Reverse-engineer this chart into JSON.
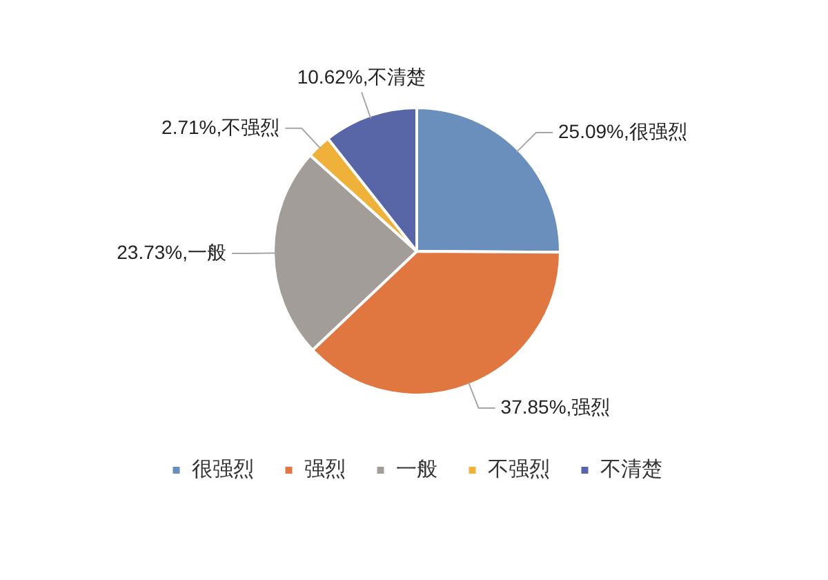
{
  "chart_data": {
    "type": "pie",
    "categories": [
      "很强烈",
      "强烈",
      "一般",
      "不强烈",
      "不清楚"
    ],
    "values": [
      25.09,
      37.85,
      23.73,
      2.71,
      10.62
    ],
    "colors": [
      "#6a8fbd",
      "#e07640",
      "#a39d99",
      "#f0b13a",
      "#5865a6"
    ],
    "value_labels": [
      "25.09%,很强烈",
      "37.85%,强烈",
      "23.73%,一般",
      "2.71%,不强烈",
      "10.62%,不清楚"
    ],
    "legend": "bottom"
  }
}
